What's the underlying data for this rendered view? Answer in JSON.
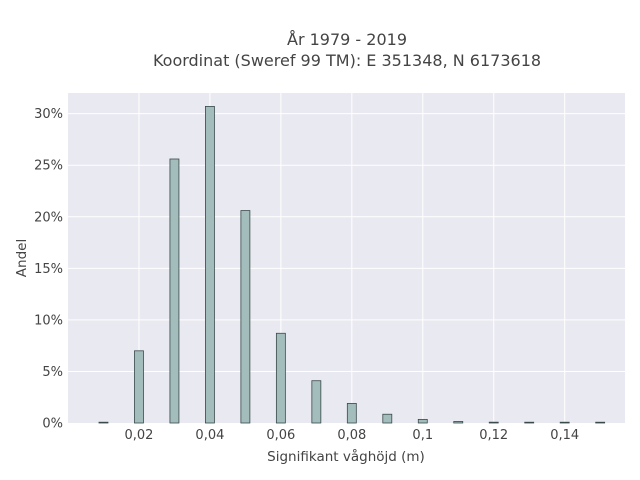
{
  "chart_data": {
    "type": "bar",
    "title_line1": "År 1979 - 2019",
    "title_line2": "Koordinat (Sweref 99 TM): E 351348, N 6173618",
    "xlabel": "Signifikant våghöjd (m)",
    "ylabel": "Andel",
    "x": [
      0.01,
      0.02,
      0.03,
      0.04,
      0.05,
      0.06,
      0.07,
      0.08,
      0.09,
      0.1,
      0.11,
      0.12,
      0.13,
      0.14,
      0.15
    ],
    "values": [
      0.05,
      7.0,
      25.6,
      30.7,
      20.6,
      8.7,
      4.1,
      1.9,
      0.85,
      0.35,
      0.15,
      0.08,
      0.05,
      0.05,
      0.05
    ],
    "xlim": [
      0.0,
      0.157
    ],
    "ylim": [
      0,
      32
    ],
    "x_ticks": [
      0.02,
      0.04,
      0.06,
      0.08,
      0.1,
      0.12,
      0.14
    ],
    "x_tick_labels": [
      "0,02",
      "0,04",
      "0,06",
      "0,08",
      "0,1",
      "0,12",
      "0,14"
    ],
    "y_ticks": [
      0,
      5,
      10,
      15,
      20,
      25,
      30
    ],
    "y_tick_labels": [
      "0%",
      "5%",
      "10%",
      "15%",
      "20%",
      "25%",
      "30%"
    ],
    "grid": true,
    "plot_background": "#e9e9f1",
    "bar_color": "#a3bcbc",
    "bar_edge_color": "#3a4a4a",
    "grid_color": "#ffffff",
    "text_color": "#444444"
  }
}
